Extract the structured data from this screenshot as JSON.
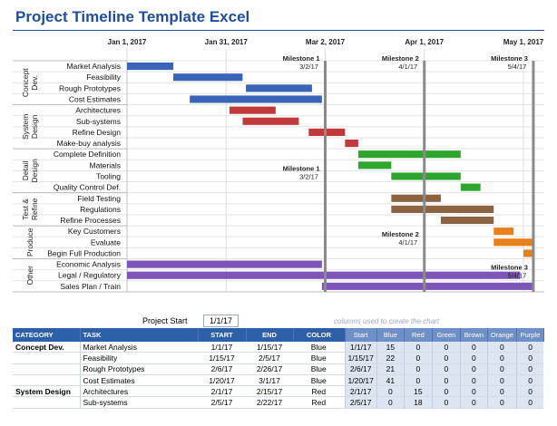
{
  "title": "Project Timeline Template Excel",
  "project_start_label": "Project Start",
  "project_start_value": "1/1/17",
  "helper_note": "columns used to create the chart",
  "colors": {
    "Blue": "#3a64b7",
    "Red": "#c0393b",
    "Green": "#2ea52e",
    "Brown": "#8b6340",
    "Orange": "#e8801c",
    "Purple": "#7d54b8"
  },
  "chart_data": {
    "type": "gantt",
    "x_axis": {
      "min": "2017-01-01",
      "max": "2017-05-01",
      "ticks": [
        "Jan 1, 2017",
        "Jan 31, 2017",
        "Mar 2, 2017",
        "Apr 1, 2017",
        "May 1, 2017"
      ]
    },
    "groups": [
      {
        "label": "Concept Dev.",
        "rows": [
          0,
          3
        ]
      },
      {
        "label": "System Design",
        "rows": [
          4,
          7
        ]
      },
      {
        "label": "Detail Design",
        "rows": [
          8,
          11
        ]
      },
      {
        "label": "Test & Refine",
        "rows": [
          12,
          14
        ]
      },
      {
        "label": "Produce",
        "rows": [
          15,
          17
        ]
      },
      {
        "label": "Other",
        "rows": [
          18,
          20
        ]
      }
    ],
    "tasks": [
      {
        "task": "Market Analysis",
        "start": "2017-01-01",
        "end": "2017-01-15",
        "color": "Blue"
      },
      {
        "task": "Feasibility",
        "start": "2017-01-15",
        "end": "2017-02-05",
        "color": "Blue"
      },
      {
        "task": "Rough Prototypes",
        "start": "2017-02-06",
        "end": "2017-02-26",
        "color": "Blue"
      },
      {
        "task": "Cost Estimates",
        "start": "2017-01-20",
        "end": "2017-03-01",
        "color": "Blue"
      },
      {
        "task": "Architectures",
        "start": "2017-02-01",
        "end": "2017-02-15",
        "color": "Red"
      },
      {
        "task": "Sub-systems",
        "start": "2017-02-05",
        "end": "2017-02-22",
        "color": "Red"
      },
      {
        "task": "Refine Design",
        "start": "2017-02-25",
        "end": "2017-03-08",
        "color": "Red"
      },
      {
        "task": "Make-buy analysis",
        "start": "2017-03-08",
        "end": "2017-03-12",
        "color": "Red"
      },
      {
        "task": "Complete Definition",
        "start": "2017-03-12",
        "end": "2017-04-12",
        "color": "Green"
      },
      {
        "task": "Materials",
        "start": "2017-03-12",
        "end": "2017-03-22",
        "color": "Green"
      },
      {
        "task": "Tooling",
        "start": "2017-03-22",
        "end": "2017-04-12",
        "color": "Green"
      },
      {
        "task": "Quality Control Def.",
        "start": "2017-04-12",
        "end": "2017-04-18",
        "color": "Green"
      },
      {
        "task": "Field Testing",
        "start": "2017-03-22",
        "end": "2017-04-06",
        "color": "Brown"
      },
      {
        "task": "Regulations",
        "start": "2017-03-22",
        "end": "2017-04-22",
        "color": "Brown"
      },
      {
        "task": "Refine Processes",
        "start": "2017-04-06",
        "end": "2017-04-22",
        "color": "Brown"
      },
      {
        "task": "Key Customers",
        "start": "2017-04-22",
        "end": "2017-04-28",
        "color": "Orange"
      },
      {
        "task": "Evaluate",
        "start": "2017-04-22",
        "end": "2017-05-04",
        "color": "Orange"
      },
      {
        "task": "Begin Full Production",
        "start": "2017-05-01",
        "end": "2017-05-04",
        "color": "Orange"
      },
      {
        "task": "Economic Analysis",
        "start": "2017-01-01",
        "end": "2017-03-01",
        "color": "Purple"
      },
      {
        "task": "Legal / Regulatory",
        "start": "2017-01-01",
        "end": "2017-04-30",
        "color": "Purple"
      },
      {
        "task": "Sales Plan / Train",
        "start": "2017-03-01",
        "end": "2017-05-04",
        "color": "Purple"
      }
    ],
    "milestones": [
      {
        "name": "Milestone 1",
        "date_label": "3/2/17",
        "date": "2017-03-02",
        "label_at_row": 0
      },
      {
        "name": "Milestone 2",
        "date_label": "4/1/17",
        "date": "2017-04-01",
        "label_at_row": 0
      },
      {
        "name": "Milestone 3",
        "date_label": "5/4/17",
        "date": "2017-05-04",
        "label_at_row": 0
      },
      {
        "name": "Milestone 1",
        "date_label": "3/2/17",
        "date": "2017-03-02",
        "label_at_row": 10
      },
      {
        "name": "Milestone 2",
        "date_label": "4/1/17",
        "date": "2017-04-01",
        "label_at_row": 16
      },
      {
        "name": "Milestone 3",
        "date_label": "5/4/17",
        "date": "2017-05-04",
        "label_at_row": 19
      }
    ]
  },
  "table": {
    "headers": [
      "CATEGORY",
      "TASK",
      "START",
      "END",
      "COLOR"
    ],
    "helper_headers": [
      "Start",
      "Blue",
      "Red",
      "Green",
      "Brown",
      "Orange",
      "Purple"
    ],
    "rows": [
      {
        "category": "Concept Dev.",
        "task": "Market Analysis",
        "start": "1/1/17",
        "end": "1/15/17",
        "color": "Blue",
        "h_start": "1/1/17",
        "vals": [
          "15",
          "0",
          "0",
          "0",
          "0",
          "0"
        ]
      },
      {
        "category": "",
        "task": "Feasibility",
        "start": "1/15/17",
        "end": "2/5/17",
        "color": "Blue",
        "h_start": "1/15/17",
        "vals": [
          "22",
          "0",
          "0",
          "0",
          "0",
          "0"
        ]
      },
      {
        "category": "",
        "task": "Rough Prototypes",
        "start": "2/6/17",
        "end": "2/26/17",
        "color": "Blue",
        "h_start": "2/6/17",
        "vals": [
          "21",
          "0",
          "0",
          "0",
          "0",
          "0"
        ]
      },
      {
        "category": "",
        "task": "Cost Estimates",
        "start": "1/20/17",
        "end": "3/1/17",
        "color": "Blue",
        "h_start": "1/20/17",
        "vals": [
          "41",
          "0",
          "0",
          "0",
          "0",
          "0"
        ]
      },
      {
        "category": "System Design",
        "task": "Architectures",
        "start": "2/1/17",
        "end": "2/15/17",
        "color": "Red",
        "h_start": "2/1/17",
        "vals": [
          "0",
          "15",
          "0",
          "0",
          "0",
          "0"
        ]
      },
      {
        "category": "",
        "task": "Sub-systems",
        "start": "2/5/17",
        "end": "2/22/17",
        "color": "Red",
        "h_start": "2/5/17",
        "vals": [
          "0",
          "18",
          "0",
          "0",
          "0",
          "0"
        ]
      }
    ]
  }
}
